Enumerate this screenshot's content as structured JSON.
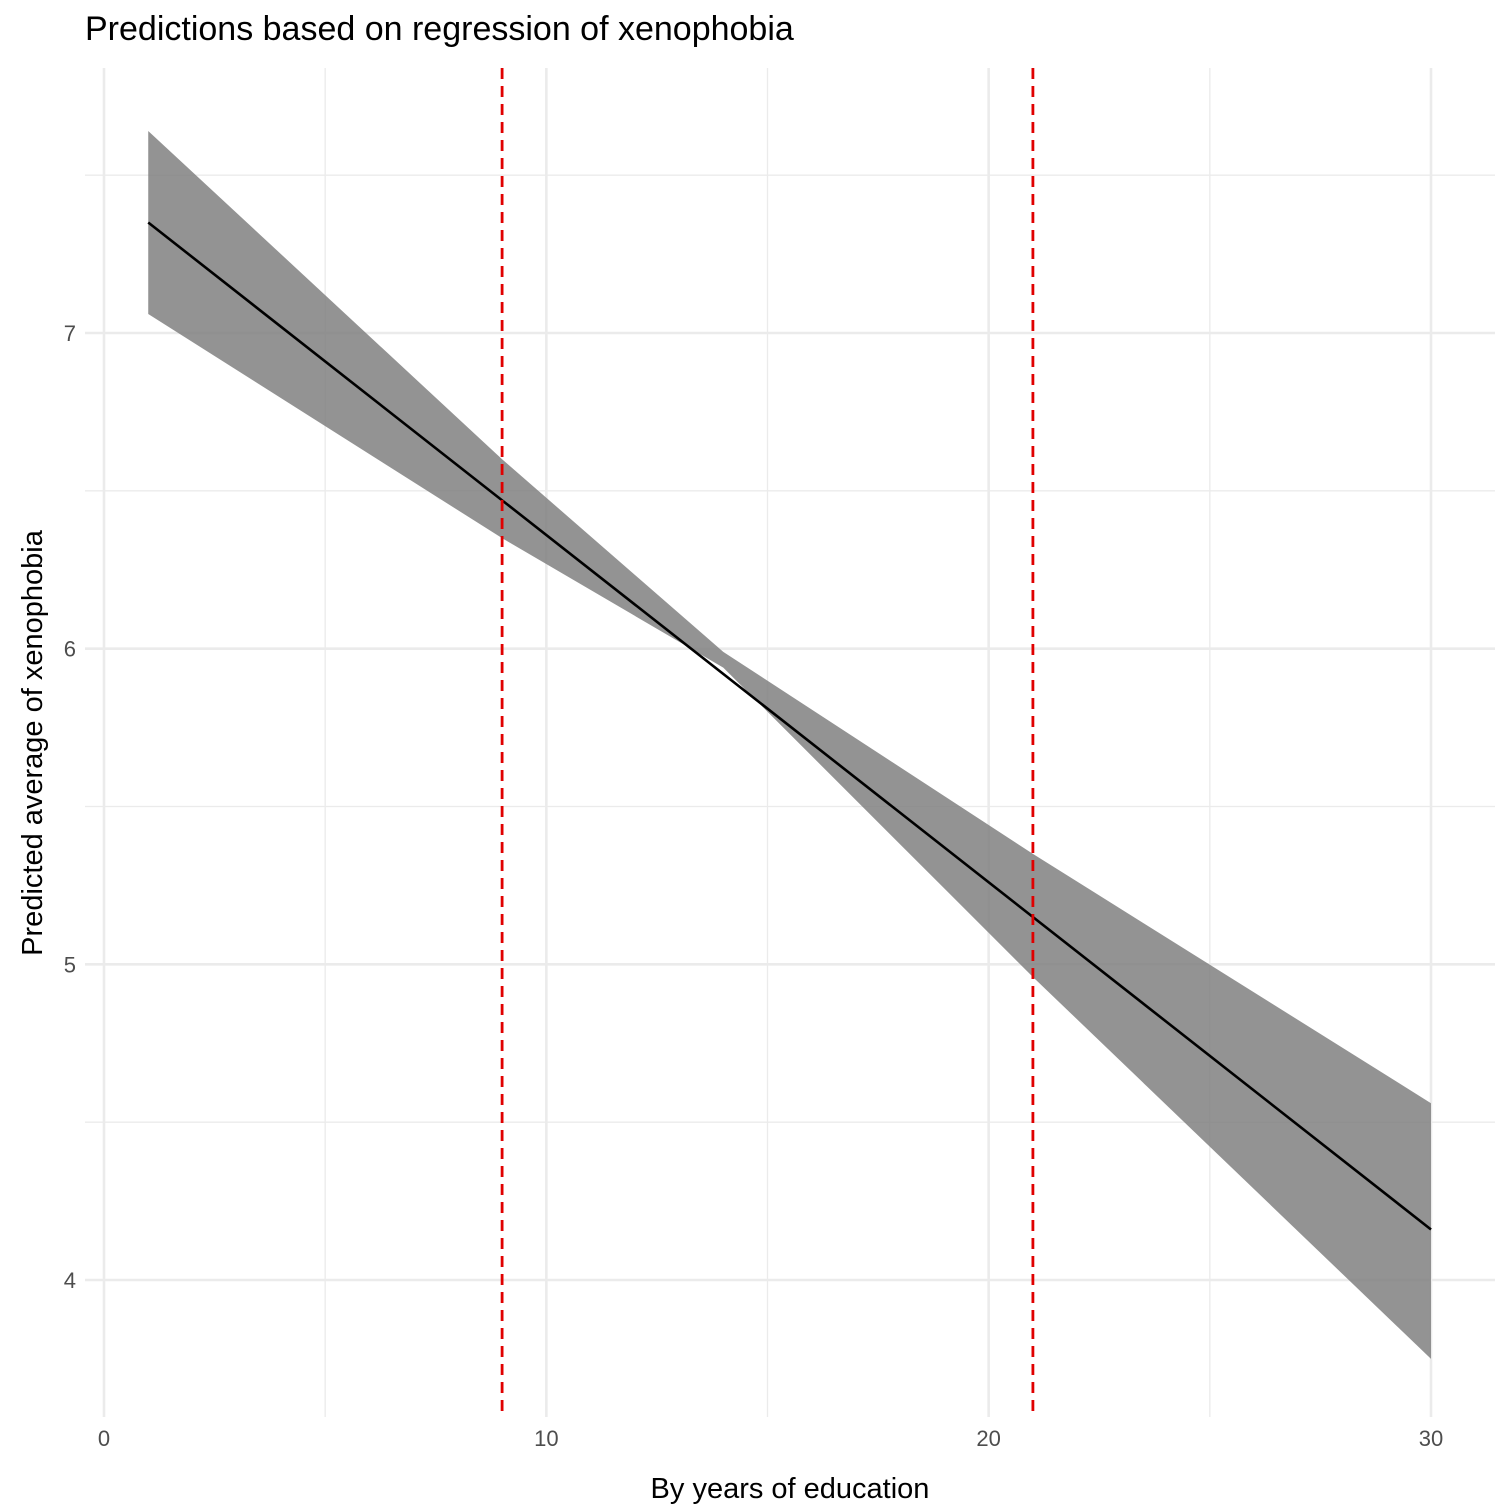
{
  "chart_data": {
    "type": "line",
    "title": "Predictions based on regression of xenophobia",
    "xlabel": "By years of education",
    "ylabel": "Predicted average of xenophobia",
    "xlim": [
      0,
      30
    ],
    "ylim": [
      3.6,
      7.85
    ],
    "x_ticks": [
      0,
      10,
      20,
      30
    ],
    "y_ticks": [
      4,
      5,
      6,
      7
    ],
    "x_tick_labels": [
      "0",
      "10",
      "20",
      "30"
    ],
    "y_tick_labels": [
      "4",
      "5",
      "6",
      "7"
    ],
    "grid": true,
    "series": [
      {
        "type": "line",
        "x": [
          1,
          30
        ],
        "y": [
          7.35,
          4.16
        ],
        "color": "#000000"
      },
      {
        "type": "ribbon",
        "x": [
          1,
          9,
          14,
          21,
          30
        ],
        "ymin": [
          7.06,
          6.35,
          5.94,
          4.96,
          3.75
        ],
        "ymax": [
          7.64,
          6.6,
          5.99,
          5.35,
          4.56
        ],
        "color": "#808080"
      }
    ],
    "reference_lines": [
      {
        "orientation": "vertical",
        "x": 9,
        "color": "#e00000",
        "style": "dashed"
      },
      {
        "orientation": "vertical",
        "x": 21,
        "color": "#e00000",
        "style": "dashed"
      }
    ]
  }
}
